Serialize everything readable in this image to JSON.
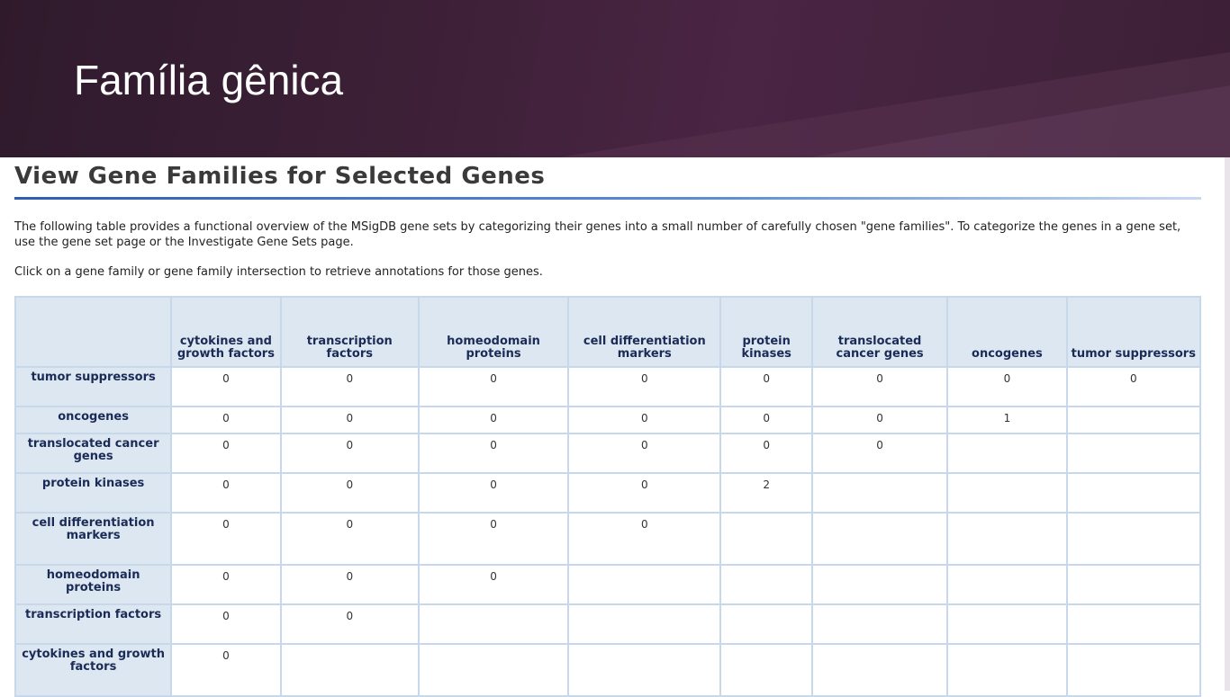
{
  "slide": {
    "title": "Família gênica"
  },
  "page": {
    "heading": "View Gene Families for Selected Genes",
    "intro": "The following table provides a functional overview of the MSigDB gene sets by categorizing their genes into a small number of carefully chosen \"gene families\". To categorize the genes in a gene set, use the gene set page or the Investigate Gene Sets page.",
    "instruction": "Click on a gene family or gene family intersection to retrieve annotations for those genes."
  },
  "table": {
    "columns": [
      "cytokines and growth factors",
      "transcription factors",
      "homeodomain proteins",
      "cell differentiation markers",
      "protein kinases",
      "translocated cancer genes",
      "oncogenes",
      "tumor suppressors"
    ],
    "rows": [
      {
        "label": "tumor suppressors",
        "cells": [
          "0",
          "0",
          "0",
          "0",
          "0",
          "0",
          "0",
          "0"
        ]
      },
      {
        "label": "oncogenes",
        "cells": [
          "0",
          "0",
          "0",
          "0",
          "0",
          "0",
          "1",
          ""
        ]
      },
      {
        "label": "translocated cancer genes",
        "cells": [
          "0",
          "0",
          "0",
          "0",
          "0",
          "0",
          "",
          ""
        ]
      },
      {
        "label": "protein kinases",
        "cells": [
          "0",
          "0",
          "0",
          "0",
          "2",
          "",
          "",
          ""
        ]
      },
      {
        "label": "cell differentiation markers",
        "cells": [
          "0",
          "0",
          "0",
          "0",
          "",
          "",
          "",
          ""
        ]
      },
      {
        "label": "homeodomain proteins",
        "cells": [
          "0",
          "0",
          "0",
          "",
          "",
          "",
          "",
          ""
        ]
      },
      {
        "label": "transcription factors",
        "cells": [
          "0",
          "0",
          "",
          "",
          "",
          "",
          "",
          ""
        ]
      },
      {
        "label": "cytokines and growth factors",
        "cells": [
          "0",
          "",
          "",
          "",
          "",
          "",
          "",
          ""
        ]
      }
    ]
  },
  "colors": {
    "header_bg": "#3d2037",
    "table_header_bg": "#dde7f1",
    "table_border": "#c6d8ea",
    "table_text": "#1b2b57",
    "heading_rule": "#2d5fb0"
  }
}
